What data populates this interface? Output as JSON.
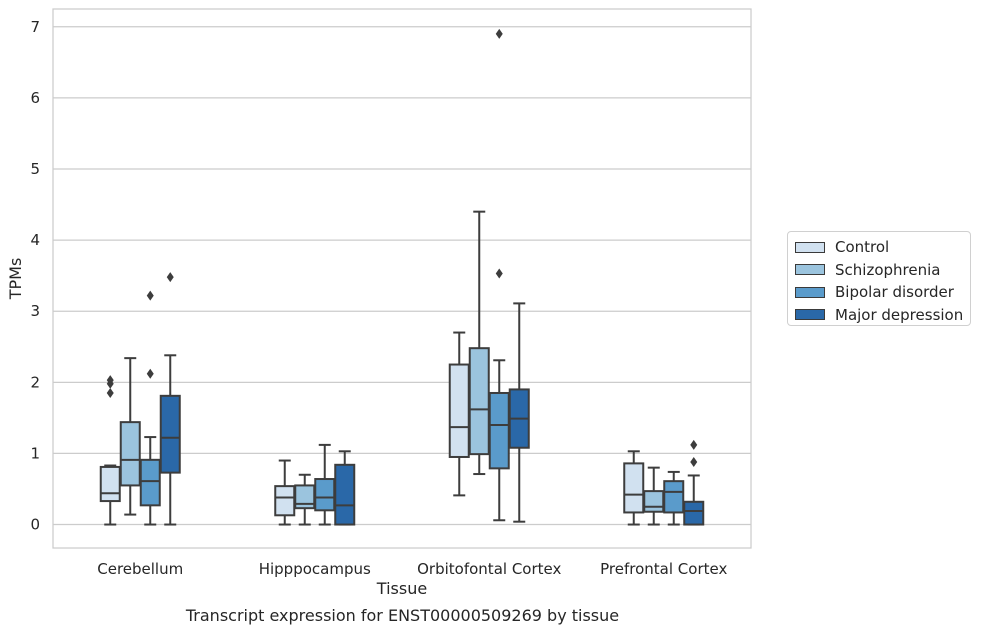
{
  "chart_data": {
    "type": "box",
    "caption": "Transcript expression for ENST00000509269 by tissue",
    "xlabel": "Tissue",
    "ylabel": "TPMs",
    "ylim": [
      -0.33,
      7.25
    ],
    "yticks": [
      0,
      1,
      2,
      3,
      4,
      5,
      6,
      7
    ],
    "grid": true,
    "legend_position": "right",
    "categories": [
      "Cerebellum",
      "Hipppocampus",
      "Orbitofontal Cortex",
      "Prefrontal Cortex"
    ],
    "series": [
      {
        "name": "Control",
        "color": "#d1e1f0",
        "boxes": [
          {
            "whisker_low": 0.0,
            "q1": 0.33,
            "median": 0.44,
            "q3": 0.81,
            "whisker_high": 0.83,
            "outliers": [
              1.85,
              1.98,
              2.03
            ]
          },
          {
            "whisker_low": 0.0,
            "q1": 0.13,
            "median": 0.38,
            "q3": 0.54,
            "whisker_high": 0.9,
            "outliers": []
          },
          {
            "whisker_low": 0.41,
            "q1": 0.95,
            "median": 1.37,
            "q3": 2.25,
            "whisker_high": 2.7,
            "outliers": []
          },
          {
            "whisker_low": 0.0,
            "q1": 0.17,
            "median": 0.42,
            "q3": 0.86,
            "whisker_high": 1.03,
            "outliers": []
          }
        ]
      },
      {
        "name": "Schizophrenia",
        "color": "#9bc4de",
        "boxes": [
          {
            "whisker_low": 0.14,
            "q1": 0.55,
            "median": 0.91,
            "q3": 1.44,
            "whisker_high": 2.34,
            "outliers": []
          },
          {
            "whisker_low": 0.0,
            "q1": 0.23,
            "median": 0.29,
            "q3": 0.55,
            "whisker_high": 0.7,
            "outliers": []
          },
          {
            "whisker_low": 0.71,
            "q1": 0.99,
            "median": 1.62,
            "q3": 2.48,
            "whisker_high": 4.4,
            "outliers": []
          },
          {
            "whisker_low": 0.0,
            "q1": 0.18,
            "median": 0.25,
            "q3": 0.47,
            "whisker_high": 0.8,
            "outliers": []
          }
        ]
      },
      {
        "name": "Bipolar disorder",
        "color": "#5a9bcb",
        "boxes": [
          {
            "whisker_low": 0.0,
            "q1": 0.27,
            "median": 0.61,
            "q3": 0.91,
            "whisker_high": 1.23,
            "outliers": [
              2.12,
              3.22
            ]
          },
          {
            "whisker_low": 0.0,
            "q1": 0.2,
            "median": 0.38,
            "q3": 0.64,
            "whisker_high": 1.12,
            "outliers": []
          },
          {
            "whisker_low": 0.06,
            "q1": 0.79,
            "median": 1.4,
            "q3": 1.85,
            "whisker_high": 2.31,
            "outliers": [
              3.53,
              6.9
            ]
          },
          {
            "whisker_low": 0.0,
            "q1": 0.17,
            "median": 0.46,
            "q3": 0.61,
            "whisker_high": 0.74,
            "outliers": []
          }
        ]
      },
      {
        "name": "Major depression",
        "color": "#2a68a8",
        "boxes": [
          {
            "whisker_low": 0.0,
            "q1": 0.73,
            "median": 1.22,
            "q3": 1.81,
            "whisker_high": 2.38,
            "outliers": [
              3.48
            ]
          },
          {
            "whisker_low": 0.0,
            "q1": 0.0,
            "median": 0.27,
            "q3": 0.84,
            "whisker_high": 1.03,
            "outliers": []
          },
          {
            "whisker_low": 0.04,
            "q1": 1.08,
            "median": 1.49,
            "q3": 1.9,
            "whisker_high": 3.11,
            "outliers": []
          },
          {
            "whisker_low": 0.0,
            "q1": 0.0,
            "median": 0.19,
            "q3": 0.32,
            "whisker_high": 0.69,
            "outliers": [
              0.88,
              1.12
            ]
          }
        ]
      }
    ]
  }
}
